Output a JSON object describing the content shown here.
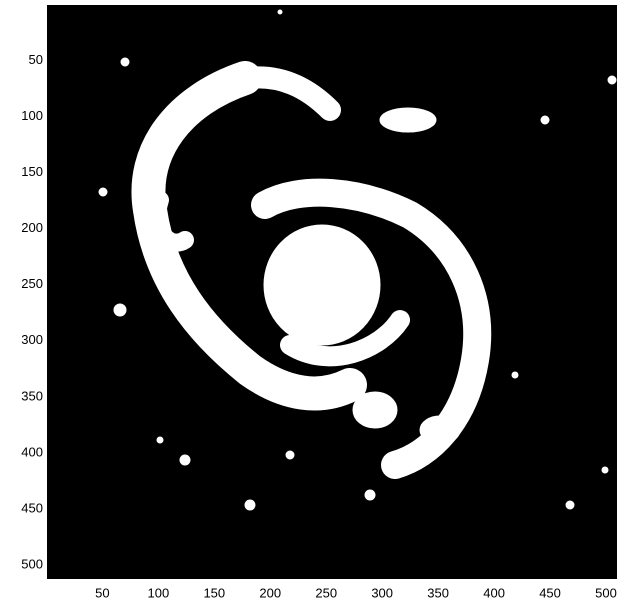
{
  "chart_data": {
    "type": "image",
    "xlim": [
      0.5,
      512.5
    ],
    "ylim": [
      0.5,
      512.5
    ],
    "xticks": [
      50,
      100,
      150,
      200,
      250,
      300,
      350,
      400,
      450,
      500
    ],
    "yticks": [
      50,
      100,
      150,
      200,
      250,
      300,
      350,
      400,
      450,
      500
    ]
  }
}
